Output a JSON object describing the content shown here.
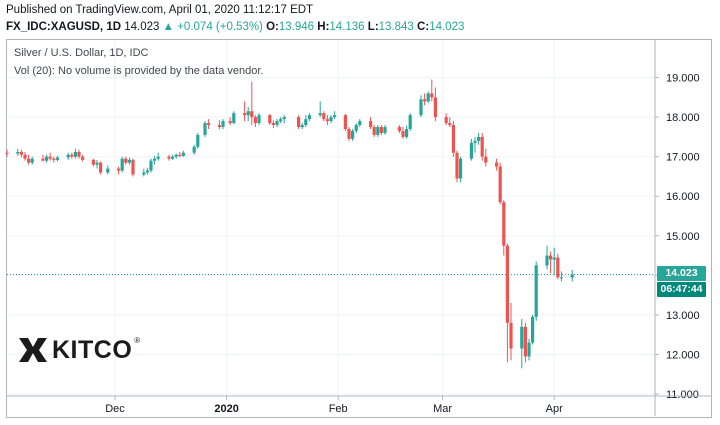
{
  "header": {
    "published": "Published on TradingView.com, April 01, 2020 11:12:17 EDT",
    "symbol": "FX_IDC:XAGUSD, 1D",
    "last": "14.023",
    "arrow": "▲",
    "change": "+0.074 (+0.53%)",
    "o_label": "O:",
    "o": "13.946",
    "h_label": "H:",
    "h": "14.136",
    "l_label": "L:",
    "l": "13.843",
    "c_label": "C:",
    "c": "14.023"
  },
  "legend": {
    "title": "Silver / U.S. Dollar, 1D, IDC",
    "volume_note": "Vol (20): No volume is provided by the data vendor."
  },
  "logo": {
    "text": "KITCO",
    "reg": "®",
    "icon": "kitco-emblem-icon"
  },
  "price_label": {
    "value": "14.023",
    "countdown": "06:47:44"
  },
  "colors": {
    "up": "#26a69a",
    "down": "#ef5350",
    "grid": "#f0f3fa",
    "last_line": "#26a69a",
    "countdown_bg": "#00897b"
  },
  "chart_data": {
    "type": "candlestick",
    "title": "Silver / U.S. Dollar, 1D, IDC",
    "y_ticks": [
      "11.000",
      "12.000",
      "13.000",
      "14.000",
      "15.000",
      "16.000",
      "17.000",
      "18.000",
      "19.000"
    ],
    "ylim": [
      10.95,
      19.95
    ],
    "x_ticks": [
      {
        "label": "Dec",
        "date": "2019-12-01"
      },
      {
        "label": "2020",
        "date": "2020-01-01"
      },
      {
        "label": "Feb",
        "date": "2020-02-01"
      },
      {
        "label": "Mar",
        "date": "2020-03-01"
      },
      {
        "label": "Apr",
        "date": "2020-04-01"
      }
    ],
    "xlim": [
      "2019-11-01",
      "2020-04-29"
    ],
    "grid": true,
    "last_price": 14.023,
    "candles": [
      {
        "d": "2019-11-01",
        "o": 17.1,
        "h": 17.18,
        "l": 17.0,
        "c": 17.08
      },
      {
        "d": "2019-11-04",
        "o": 17.08,
        "h": 17.2,
        "l": 17.02,
        "c": 17.12
      },
      {
        "d": "2019-11-05",
        "o": 17.12,
        "h": 17.18,
        "l": 16.98,
        "c": 17.05
      },
      {
        "d": "2019-11-06",
        "o": 17.05,
        "h": 17.12,
        "l": 16.9,
        "c": 16.95
      },
      {
        "d": "2019-11-07",
        "o": 16.95,
        "h": 17.05,
        "l": 16.8,
        "c": 16.85
      },
      {
        "d": "2019-11-08",
        "o": 16.85,
        "h": 17.0,
        "l": 16.8,
        "c": 16.95
      },
      {
        "d": "2019-11-11",
        "o": 16.95,
        "h": 17.05,
        "l": 16.88,
        "c": 16.9
      },
      {
        "d": "2019-11-12",
        "o": 16.9,
        "h": 17.05,
        "l": 16.85,
        "c": 17.0
      },
      {
        "d": "2019-11-13",
        "o": 17.0,
        "h": 17.1,
        "l": 16.9,
        "c": 16.95
      },
      {
        "d": "2019-11-14",
        "o": 16.95,
        "h": 17.0,
        "l": 16.85,
        "c": 16.92
      },
      {
        "d": "2019-11-15",
        "o": 16.92,
        "h": 17.02,
        "l": 16.88,
        "c": 16.98
      },
      {
        "d": "2019-11-18",
        "o": 16.98,
        "h": 17.1,
        "l": 16.92,
        "c": 17.05
      },
      {
        "d": "2019-11-19",
        "o": 17.05,
        "h": 17.1,
        "l": 16.95,
        "c": 17.0
      },
      {
        "d": "2019-11-20",
        "o": 17.0,
        "h": 17.2,
        "l": 16.95,
        "c": 17.12
      },
      {
        "d": "2019-11-21",
        "o": 17.12,
        "h": 17.18,
        "l": 16.95,
        "c": 17.0
      },
      {
        "d": "2019-11-22",
        "o": 17.0,
        "h": 17.05,
        "l": 16.88,
        "c": 16.92
      },
      {
        "d": "2019-11-25",
        "o": 16.92,
        "h": 16.95,
        "l": 16.75,
        "c": 16.8
      },
      {
        "d": "2019-11-26",
        "o": 16.8,
        "h": 16.92,
        "l": 16.7,
        "c": 16.85
      },
      {
        "d": "2019-11-27",
        "o": 16.85,
        "h": 16.88,
        "l": 16.55,
        "c": 16.6
      },
      {
        "d": "2019-11-29",
        "o": 16.6,
        "h": 16.78,
        "l": 16.55,
        "c": 16.7
      },
      {
        "d": "2019-12-02",
        "o": 16.7,
        "h": 16.75,
        "l": 16.55,
        "c": 16.65
      },
      {
        "d": "2019-12-03",
        "o": 16.65,
        "h": 17.0,
        "l": 16.6,
        "c": 16.95
      },
      {
        "d": "2019-12-04",
        "o": 16.95,
        "h": 17.0,
        "l": 16.8,
        "c": 16.85
      },
      {
        "d": "2019-12-05",
        "o": 16.85,
        "h": 16.98,
        "l": 16.8,
        "c": 16.92
      },
      {
        "d": "2019-12-06",
        "o": 16.92,
        "h": 16.95,
        "l": 16.5,
        "c": 16.55
      },
      {
        "d": "2019-12-09",
        "o": 16.55,
        "h": 16.7,
        "l": 16.5,
        "c": 16.6
      },
      {
        "d": "2019-12-10",
        "o": 16.6,
        "h": 16.72,
        "l": 16.55,
        "c": 16.65
      },
      {
        "d": "2019-12-11",
        "o": 16.65,
        "h": 16.95,
        "l": 16.6,
        "c": 16.9
      },
      {
        "d": "2019-12-12",
        "o": 16.9,
        "h": 17.02,
        "l": 16.8,
        "c": 16.95
      },
      {
        "d": "2019-12-13",
        "o": 16.95,
        "h": 17.1,
        "l": 16.9,
        "c": 17.0
      },
      {
        "d": "2019-12-16",
        "o": 17.0,
        "h": 17.05,
        "l": 16.9,
        "c": 16.95
      },
      {
        "d": "2019-12-17",
        "o": 16.95,
        "h": 17.05,
        "l": 16.92,
        "c": 17.0
      },
      {
        "d": "2019-12-18",
        "o": 17.0,
        "h": 17.08,
        "l": 16.95,
        "c": 17.05
      },
      {
        "d": "2019-12-19",
        "o": 17.05,
        "h": 17.12,
        "l": 16.98,
        "c": 17.02
      },
      {
        "d": "2019-12-20",
        "o": 17.02,
        "h": 17.15,
        "l": 17.0,
        "c": 17.1
      },
      {
        "d": "2019-12-23",
        "o": 17.1,
        "h": 17.3,
        "l": 17.05,
        "c": 17.25
      },
      {
        "d": "2019-12-24",
        "o": 17.25,
        "h": 17.6,
        "l": 17.2,
        "c": 17.55
      },
      {
        "d": "2019-12-26",
        "o": 17.55,
        "h": 17.9,
        "l": 17.5,
        "c": 17.85
      },
      {
        "d": "2019-12-27",
        "o": 17.85,
        "h": 17.95,
        "l": 17.7,
        "c": 17.8
      },
      {
        "d": "2019-12-30",
        "o": 17.8,
        "h": 17.92,
        "l": 17.7,
        "c": 17.75
      },
      {
        "d": "2019-12-31",
        "o": 17.75,
        "h": 17.95,
        "l": 17.7,
        "c": 17.9
      },
      {
        "d": "2020-01-02",
        "o": 17.9,
        "h": 18.0,
        "l": 17.8,
        "c": 17.85
      },
      {
        "d": "2020-01-03",
        "o": 17.85,
        "h": 18.15,
        "l": 17.82,
        "c": 18.1
      },
      {
        "d": "2020-01-06",
        "o": 18.1,
        "h": 18.4,
        "l": 17.9,
        "c": 18.05
      },
      {
        "d": "2020-01-07",
        "o": 18.05,
        "h": 18.25,
        "l": 17.9,
        "c": 18.15
      },
      {
        "d": "2020-01-08",
        "o": 18.15,
        "h": 18.9,
        "l": 17.8,
        "c": 18.0
      },
      {
        "d": "2020-01-09",
        "o": 18.0,
        "h": 18.05,
        "l": 17.75,
        "c": 17.85
      },
      {
        "d": "2020-01-10",
        "o": 17.85,
        "h": 18.1,
        "l": 17.8,
        "c": 18.05
      },
      {
        "d": "2020-01-13",
        "o": 18.05,
        "h": 18.08,
        "l": 17.8,
        "c": 17.85
      },
      {
        "d": "2020-01-14",
        "o": 17.85,
        "h": 17.92,
        "l": 17.72,
        "c": 17.8
      },
      {
        "d": "2020-01-15",
        "o": 17.8,
        "h": 17.95,
        "l": 17.75,
        "c": 17.9
      },
      {
        "d": "2020-01-16",
        "o": 17.9,
        "h": 18.0,
        "l": 17.85,
        "c": 17.95
      },
      {
        "d": "2020-01-17",
        "o": 17.95,
        "h": 18.05,
        "l": 17.85,
        "c": 18.0
      },
      {
        "d": "2020-01-21",
        "o": 18.0,
        "h": 18.05,
        "l": 17.7,
        "c": 17.75
      },
      {
        "d": "2020-01-22",
        "o": 17.75,
        "h": 17.85,
        "l": 17.7,
        "c": 17.8
      },
      {
        "d": "2020-01-23",
        "o": 17.8,
        "h": 18.05,
        "l": 17.75,
        "c": 17.95
      },
      {
        "d": "2020-01-24",
        "o": 17.95,
        "h": 18.1,
        "l": 17.9,
        "c": 18.05
      },
      {
        "d": "2020-01-27",
        "o": 18.05,
        "h": 18.4,
        "l": 18.0,
        "c": 18.1
      },
      {
        "d": "2020-01-28",
        "o": 18.1,
        "h": 18.15,
        "l": 17.9,
        "c": 17.95
      },
      {
        "d": "2020-01-29",
        "o": 17.95,
        "h": 18.05,
        "l": 17.8,
        "c": 17.9
      },
      {
        "d": "2020-01-30",
        "o": 17.9,
        "h": 18.05,
        "l": 17.85,
        "c": 18.0
      },
      {
        "d": "2020-01-31",
        "o": 18.0,
        "h": 18.15,
        "l": 17.95,
        "c": 18.05
      },
      {
        "d": "2020-02-03",
        "o": 18.05,
        "h": 18.08,
        "l": 17.65,
        "c": 17.7
      },
      {
        "d": "2020-02-04",
        "o": 17.7,
        "h": 17.75,
        "l": 17.4,
        "c": 17.45
      },
      {
        "d": "2020-02-05",
        "o": 17.45,
        "h": 17.7,
        "l": 17.4,
        "c": 17.65
      },
      {
        "d": "2020-02-06",
        "o": 17.65,
        "h": 17.85,
        "l": 17.6,
        "c": 17.8
      },
      {
        "d": "2020-02-07",
        "o": 17.8,
        "h": 17.95,
        "l": 17.75,
        "c": 17.9
      },
      {
        "d": "2020-02-10",
        "o": 17.9,
        "h": 18.0,
        "l": 17.7,
        "c": 17.75
      },
      {
        "d": "2020-02-11",
        "o": 17.75,
        "h": 17.8,
        "l": 17.5,
        "c": 17.55
      },
      {
        "d": "2020-02-12",
        "o": 17.55,
        "h": 17.8,
        "l": 17.5,
        "c": 17.75
      },
      {
        "d": "2020-02-13",
        "o": 17.75,
        "h": 17.8,
        "l": 17.55,
        "c": 17.6
      },
      {
        "d": "2020-02-14",
        "o": 17.6,
        "h": 17.8,
        "l": 17.55,
        "c": 17.75
      },
      {
        "d": "2020-02-18",
        "o": 17.75,
        "h": 17.8,
        "l": 17.6,
        "c": 17.65
      },
      {
        "d": "2020-02-19",
        "o": 17.65,
        "h": 17.75,
        "l": 17.45,
        "c": 17.5
      },
      {
        "d": "2020-02-20",
        "o": 17.5,
        "h": 17.78,
        "l": 17.45,
        "c": 17.7
      },
      {
        "d": "2020-02-21",
        "o": 17.7,
        "h": 18.1,
        "l": 17.65,
        "c": 18.05
      },
      {
        "d": "2020-02-24",
        "o": 18.05,
        "h": 18.55,
        "l": 18.0,
        "c": 18.45
      },
      {
        "d": "2020-02-25",
        "o": 18.45,
        "h": 18.6,
        "l": 18.3,
        "c": 18.4
      },
      {
        "d": "2020-02-26",
        "o": 18.4,
        "h": 18.65,
        "l": 18.35,
        "c": 18.6
      },
      {
        "d": "2020-02-27",
        "o": 18.6,
        "h": 18.95,
        "l": 18.4,
        "c": 18.5
      },
      {
        "d": "2020-02-28",
        "o": 18.5,
        "h": 18.75,
        "l": 17.9,
        "c": 18.0
      },
      {
        "d": "2020-03-02",
        "o": 18.0,
        "h": 18.1,
        "l": 17.8,
        "c": 17.85
      },
      {
        "d": "2020-03-03",
        "o": 17.85,
        "h": 18.0,
        "l": 17.75,
        "c": 17.8
      },
      {
        "d": "2020-03-04",
        "o": 17.8,
        "h": 17.9,
        "l": 17.0,
        "c": 17.1
      },
      {
        "d": "2020-03-05",
        "o": 17.1,
        "h": 17.15,
        "l": 16.35,
        "c": 16.45
      },
      {
        "d": "2020-03-06",
        "o": 16.45,
        "h": 17.0,
        "l": 16.35,
        "c": 16.95
      },
      {
        "d": "2020-03-09",
        "o": 16.95,
        "h": 17.45,
        "l": 16.9,
        "c": 17.35
      },
      {
        "d": "2020-03-10",
        "o": 17.35,
        "h": 17.5,
        "l": 17.1,
        "c": 17.4
      },
      {
        "d": "2020-03-11",
        "o": 17.4,
        "h": 17.6,
        "l": 17.3,
        "c": 17.5
      },
      {
        "d": "2020-03-12",
        "o": 17.5,
        "h": 17.6,
        "l": 16.9,
        "c": 17.0
      },
      {
        "d": "2020-03-13",
        "o": 17.0,
        "h": 17.2,
        "l": 16.75,
        "c": 16.85
      },
      {
        "d": "2020-03-16",
        "o": 16.85,
        "h": 16.95,
        "l": 16.65,
        "c": 16.75
      },
      {
        "d": "2020-03-17",
        "o": 16.75,
        "h": 16.85,
        "l": 15.8,
        "c": 15.85
      },
      {
        "d": "2020-03-18",
        "o": 15.85,
        "h": 15.9,
        "l": 14.5,
        "c": 14.75
      },
      {
        "d": "2020-03-19",
        "o": 14.75,
        "h": 14.8,
        "l": 11.8,
        "c": 12.8
      },
      {
        "d": "2020-03-20",
        "o": 12.8,
        "h": 13.3,
        "l": 11.85,
        "c": 12.15
      },
      {
        "d": "2020-03-23",
        "o": 12.15,
        "h": 12.9,
        "l": 11.65,
        "c": 12.7
      },
      {
        "d": "2020-03-24",
        "o": 12.7,
        "h": 12.8,
        "l": 11.8,
        "c": 11.95
      },
      {
        "d": "2020-03-25",
        "o": 11.95,
        "h": 12.4,
        "l": 11.85,
        "c": 12.3
      },
      {
        "d": "2020-03-26",
        "o": 12.3,
        "h": 13.0,
        "l": 12.25,
        "c": 12.95
      },
      {
        "d": "2020-03-27",
        "o": 12.95,
        "h": 14.35,
        "l": 12.85,
        "c": 14.25
      },
      {
        "d": "2020-03-30",
        "o": 14.25,
        "h": 14.75,
        "l": 14.15,
        "c": 14.5
      },
      {
        "d": "2020-03-31",
        "o": 14.5,
        "h": 14.6,
        "l": 14.05,
        "c": 14.4
      },
      {
        "d": "2020-04-01",
        "o": 14.4,
        "h": 14.7,
        "l": 14.0,
        "c": 14.45
      },
      {
        "d": "2020-04-02",
        "o": 14.45,
        "h": 14.55,
        "l": 13.9,
        "c": 13.95
      },
      {
        "d": "2020-04-03",
        "o": 13.95,
        "h": 14.1,
        "l": 13.85,
        "c": 13.95
      },
      {
        "d": "2020-04-06",
        "o": 13.946,
        "h": 14.136,
        "l": 13.843,
        "c": 14.023
      }
    ]
  }
}
